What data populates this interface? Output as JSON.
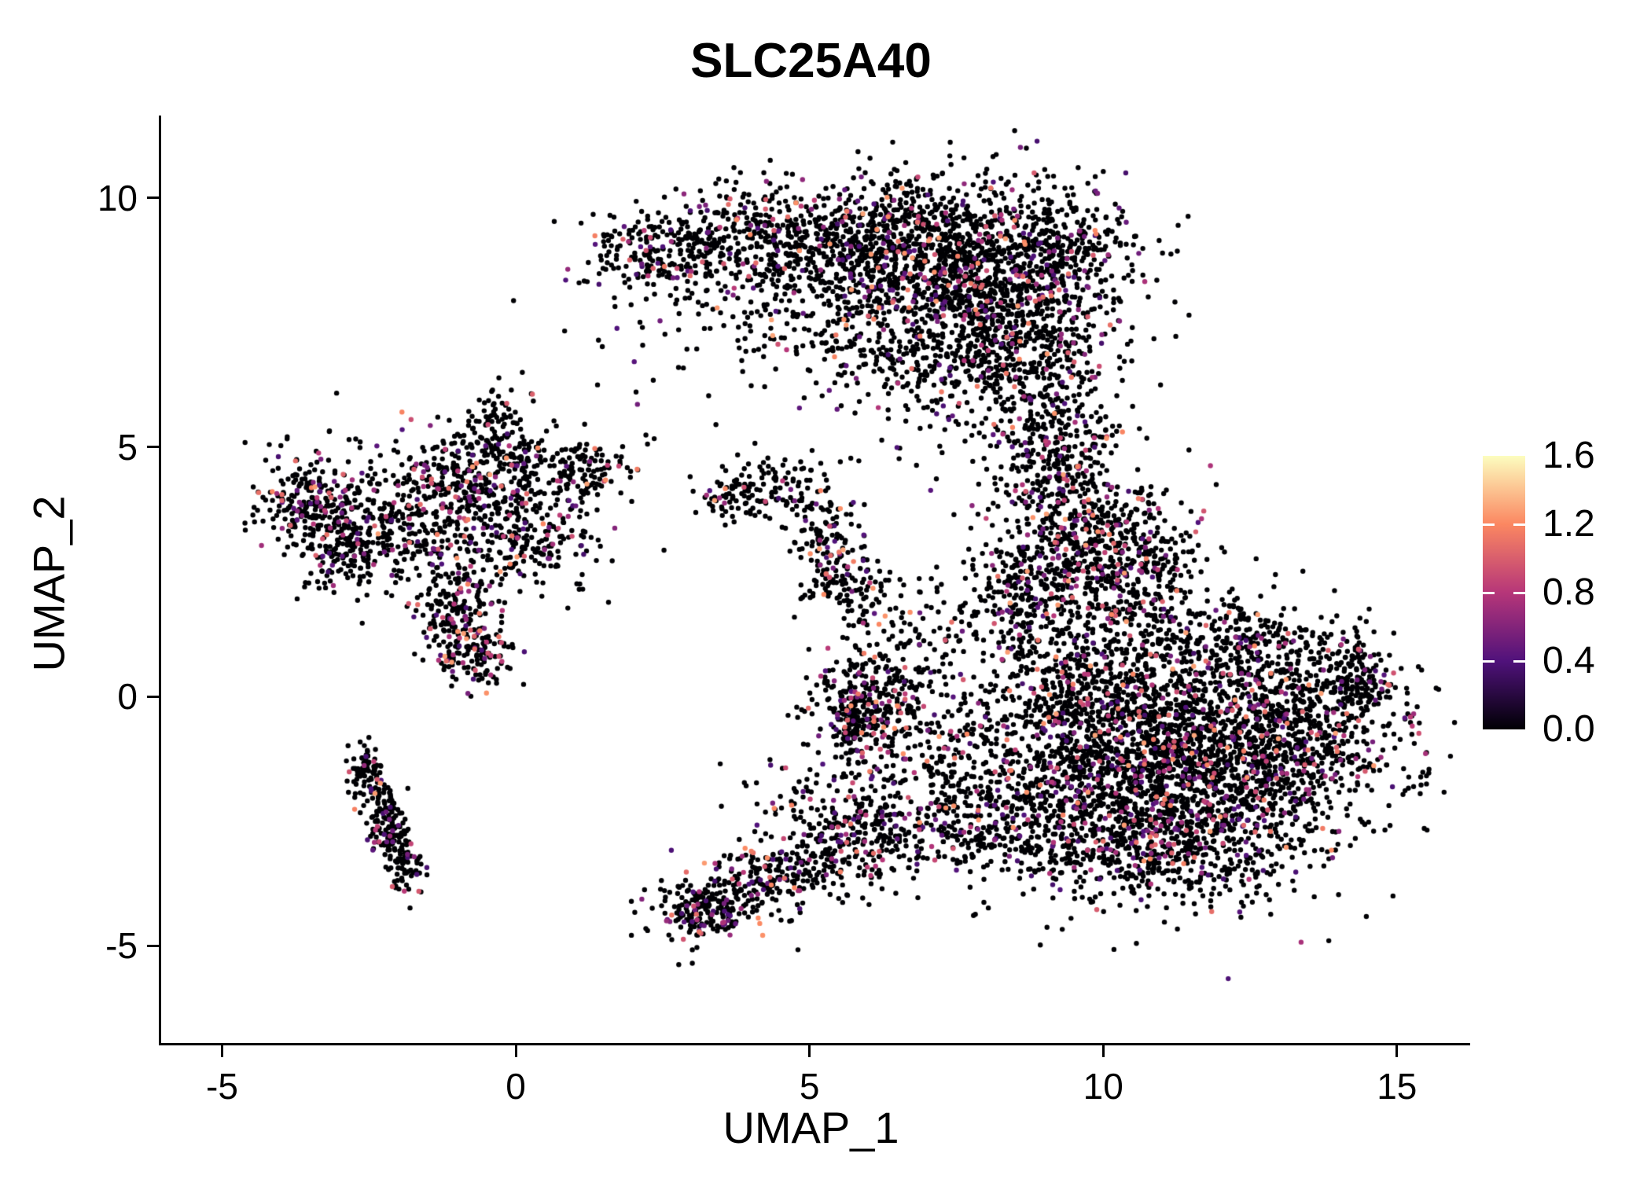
{
  "title": "SLC25A40",
  "axes": {
    "x": {
      "label": "UMAP_1",
      "ticks": [
        -5,
        0,
        5,
        10,
        15
      ],
      "tick_labels": [
        "-5",
        "0",
        "5",
        "10",
        "15"
      ]
    },
    "y": {
      "label": "UMAP_2",
      "ticks": [
        -5,
        0,
        5,
        10
      ],
      "tick_labels": [
        "-5",
        "0",
        "5",
        "10"
      ]
    }
  },
  "legend": {
    "ticks": [
      0.0,
      0.4,
      0.8,
      1.2,
      1.6
    ],
    "labels": [
      "0.0",
      "0.4",
      "0.8",
      "1.2",
      "1.6"
    ],
    "max": 1.6
  },
  "chart_data": {
    "type": "scatter",
    "title": "SLC25A40",
    "xlabel": "UMAP_1",
    "ylabel": "UMAP_2",
    "xlim": [
      -6.05,
      16.1
    ],
    "ylim": [
      -6.95,
      11.65
    ],
    "grid": false,
    "legend_position": "right",
    "color_range": [
      0,
      1.6
    ],
    "colormap": {
      "name": "magma",
      "stops": [
        [
          0,
          "#000004"
        ],
        [
          0.25,
          "#50127b"
        ],
        [
          0.5,
          "#b63679"
        ],
        [
          0.75,
          "#fb8761"
        ],
        [
          1,
          "#fcfdbf"
        ]
      ]
    },
    "point_radius_px": 3.2,
    "seed": 12345,
    "clusters": [
      {
        "x": 7.6,
        "y": 8.6,
        "sx": 1.25,
        "sy": 0.95,
        "n": 1300,
        "cf": 0.13
      },
      {
        "x": 5.6,
        "y": 9.3,
        "sx": 1.4,
        "sy": 0.55,
        "n": 450,
        "cf": 0.12
      },
      {
        "x": 3.6,
        "y": 9.1,
        "sx": 1.1,
        "sy": 0.5,
        "n": 300,
        "cf": 0.1
      },
      {
        "x": 2.3,
        "y": 8.9,
        "sx": 0.6,
        "sy": 0.35,
        "n": 120,
        "cf": 0.1
      },
      {
        "x": 8.8,
        "y": 7.0,
        "sx": 0.65,
        "sy": 0.9,
        "n": 400,
        "cf": 0.12
      },
      {
        "x": 5.2,
        "y": 7.9,
        "sx": 1.4,
        "sy": 0.7,
        "n": 250,
        "cf": 0.12
      },
      {
        "x": 6.8,
        "y": 6.7,
        "sx": 0.9,
        "sy": 0.6,
        "n": 200,
        "cf": 0.12
      },
      {
        "x": 9.4,
        "y": 8.9,
        "sx": 0.5,
        "sy": 0.6,
        "n": 180,
        "cf": 0.1
      },
      {
        "x": 9.2,
        "y": 5.0,
        "sx": 0.55,
        "sy": 0.9,
        "n": 300,
        "cf": 0.15
      },
      {
        "x": 9.7,
        "y": 3.2,
        "sx": 0.75,
        "sy": 0.9,
        "n": 450,
        "cf": 0.18
      },
      {
        "x": 10.6,
        "y": 2.6,
        "sx": 0.7,
        "sy": 0.6,
        "n": 250,
        "cf": 0.15
      },
      {
        "x": 8.6,
        "y": 2.0,
        "sx": 0.6,
        "sy": 0.8,
        "n": 250,
        "cf": 0.15
      },
      {
        "x": 11.2,
        "y": -1.4,
        "sx": 1.7,
        "sy": 1.15,
        "n": 2400,
        "cf": 0.14
      },
      {
        "x": 13.2,
        "y": -0.6,
        "sx": 0.9,
        "sy": 0.8,
        "n": 500,
        "cf": 0.12
      },
      {
        "x": 9.8,
        "y": 0.3,
        "sx": 0.9,
        "sy": 0.9,
        "n": 500,
        "cf": 0.15
      },
      {
        "x": 10.6,
        "y": -3.1,
        "sx": 1.1,
        "sy": 0.55,
        "n": 350,
        "cf": 0.12
      },
      {
        "x": 14.3,
        "y": 0.4,
        "sx": 0.28,
        "sy": 0.45,
        "n": 130,
        "cf": 0.12
      },
      {
        "x": 12.4,
        "y": 1.1,
        "sx": 0.8,
        "sy": 0.5,
        "n": 250,
        "cf": 0.12
      },
      {
        "x": 5.85,
        "y": -0.3,
        "sx": 0.42,
        "sy": 0.55,
        "n": 320,
        "cf": 0.2
      },
      {
        "x": 7.4,
        "y": -1.2,
        "sx": 0.9,
        "sy": 1.1,
        "n": 280,
        "cf": 0.15
      },
      {
        "x": 6.6,
        "y": 0.9,
        "sx": 0.5,
        "sy": 0.8,
        "n": 120,
        "cf": 0.15
      },
      {
        "x": 8.2,
        "y": -2.6,
        "sx": 0.7,
        "sy": 0.6,
        "n": 180,
        "cf": 0.12
      },
      {
        "x": 3.2,
        "y": -4.25,
        "sx": 0.45,
        "sy": 0.3,
        "n": 220,
        "cf": 0.18
      },
      {
        "x": 4.2,
        "y": -3.7,
        "sx": 0.55,
        "sy": 0.35,
        "n": 150,
        "cf": 0.18
      },
      {
        "x": 5.3,
        "y": -3.2,
        "sx": 0.6,
        "sy": 0.4,
        "n": 150,
        "cf": 0.18
      },
      {
        "x": 6.3,
        "y": -2.7,
        "sx": 0.5,
        "sy": 0.4,
        "n": 130,
        "cf": 0.15
      },
      {
        "x": 5.0,
        "y": -2.2,
        "sx": 0.7,
        "sy": 0.5,
        "n": 90,
        "cf": 0.15
      },
      {
        "x": 4.3,
        "y": 4.15,
        "sx": 0.55,
        "sy": 0.35,
        "n": 130,
        "cf": 0.1
      },
      {
        "x": 3.55,
        "y": 4.0,
        "sx": 0.2,
        "sy": 0.25,
        "n": 40,
        "cf": 0.1
      },
      {
        "x": 5.3,
        "y": 2.9,
        "sx": 0.3,
        "sy": 0.55,
        "n": 120,
        "cf": 0.2
      },
      {
        "x": 5.7,
        "y": 2.1,
        "sx": 0.35,
        "sy": 0.35,
        "n": 70,
        "cf": 0.15
      },
      {
        "x": -3.4,
        "y": 3.95,
        "sx": 0.5,
        "sy": 0.45,
        "n": 260,
        "cf": 0.15
      },
      {
        "x": -2.9,
        "y": 2.95,
        "sx": 0.45,
        "sy": 0.4,
        "n": 170,
        "cf": 0.15
      },
      {
        "x": -0.8,
        "y": 3.9,
        "sx": 0.85,
        "sy": 0.75,
        "n": 420,
        "cf": 0.15
      },
      {
        "x": -0.2,
        "y": 4.65,
        "sx": 0.8,
        "sy": 0.35,
        "n": 170,
        "cf": 0.15
      },
      {
        "x": 0.35,
        "y": 3.1,
        "sx": 0.5,
        "sy": 0.5,
        "n": 150,
        "cf": 0.15
      },
      {
        "x": -1.0,
        "y": 1.7,
        "sx": 0.35,
        "sy": 0.6,
        "n": 200,
        "cf": 0.2
      },
      {
        "x": -0.65,
        "y": 0.95,
        "sx": 0.3,
        "sy": 0.3,
        "n": 110,
        "cf": 0.2
      },
      {
        "x": -0.35,
        "y": 5.55,
        "sx": 0.25,
        "sy": 0.35,
        "n": 60,
        "cf": 0.1
      },
      {
        "x": 1.25,
        "y": 4.5,
        "sx": 0.35,
        "sy": 0.3,
        "n": 80,
        "cf": 0.1
      },
      {
        "x": -1.9,
        "y": 3.4,
        "sx": 0.5,
        "sy": 0.6,
        "n": 120,
        "cf": 0.12
      },
      {
        "x": -2.55,
        "y": -1.55,
        "sx": 0.15,
        "sy": 0.3,
        "n": 80,
        "cf": 0.15
      },
      {
        "x": -2.3,
        "y": -2.3,
        "sx": 0.16,
        "sy": 0.35,
        "n": 80,
        "cf": 0.15
      },
      {
        "x": -2.05,
        "y": -2.95,
        "sx": 0.15,
        "sy": 0.3,
        "n": 70,
        "cf": 0.15
      },
      {
        "x": -1.8,
        "y": -3.5,
        "sx": 0.16,
        "sy": 0.3,
        "n": 60,
        "cf": 0.15
      },
      {
        "x": 2.0,
        "y": 6.8,
        "sx": 1.2,
        "sy": 1.0,
        "n": 25,
        "cf": 0.1
      },
      {
        "x": 7.1,
        "y": 5.6,
        "sx": 0.8,
        "sy": 0.7,
        "n": 40,
        "cf": 0.15
      }
    ]
  }
}
